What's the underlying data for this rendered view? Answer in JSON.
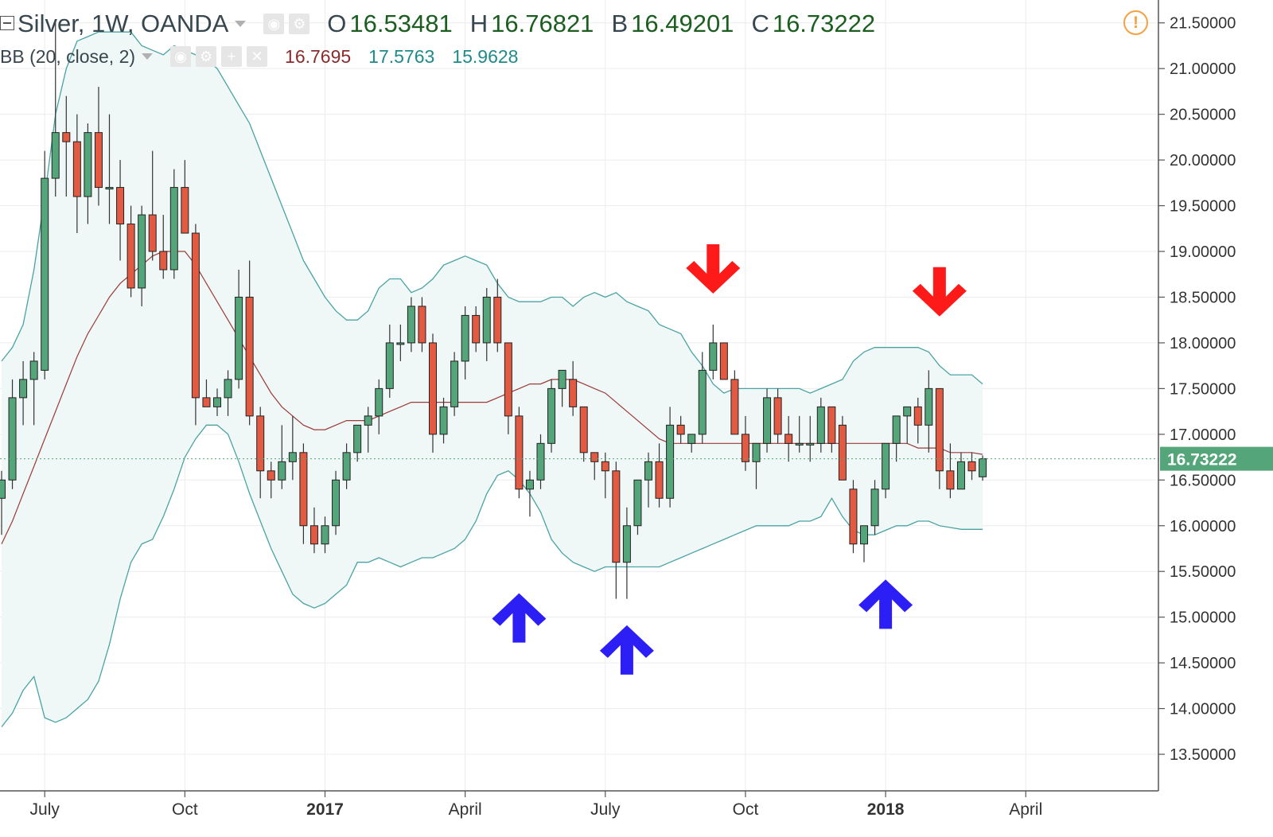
{
  "header": {
    "title": "Silver, 1W, OANDA",
    "ohlc": [
      {
        "key": "O",
        "value": "16.53481"
      },
      {
        "key": "H",
        "value": "16.76821"
      },
      {
        "key": "B",
        "value": "16.49201"
      },
      {
        "key": "C",
        "value": "16.73222"
      }
    ]
  },
  "indicator": {
    "label": "BB (20, close, 2)",
    "middle": "16.7695",
    "upper": "17.5763",
    "lower": "15.9628",
    "colors": {
      "middle": "#8b2b2b",
      "upper": "#1f8a8a",
      "lower": "#1f8a8a"
    }
  },
  "price_badge": "16.73222",
  "colors": {
    "up": "#55a57a",
    "down": "#e35a43",
    "band_fill": "#f0f7f7",
    "band_line": "#4aa3a3",
    "basis": "#9b3a3a",
    "arrow_up": "#2b1ff5",
    "arrow_down": "#ff1a1a",
    "badge": "#55a57a"
  },
  "icons": [
    "collapse-icon",
    "eye-icon",
    "gear-icon",
    "plus-icon",
    "close-icon",
    "warning-icon",
    "arrow-up-icon",
    "arrow-down-icon"
  ],
  "chart_data": {
    "type": "candlestick",
    "title": "Silver, 1W, OANDA",
    "y_ticks": [
      "13.50000",
      "14.00000",
      "14.50000",
      "15.00000",
      "15.50000",
      "16.00000",
      "16.50000",
      "17.00000",
      "17.50000",
      "18.00000",
      "18.50000",
      "19.00000",
      "19.50000",
      "20.00000",
      "20.50000",
      "21.00000",
      "21.50000"
    ],
    "x_ticks": [
      {
        "label": "July",
        "index": 4,
        "bold": false
      },
      {
        "label": "Oct",
        "index": 17,
        "bold": false
      },
      {
        "label": "2017",
        "index": 30,
        "bold": true
      },
      {
        "label": "April",
        "index": 43,
        "bold": false
      },
      {
        "label": "July",
        "index": 56,
        "bold": false
      },
      {
        "label": "Oct",
        "index": 69,
        "bold": false
      },
      {
        "label": "2018",
        "index": 82,
        "bold": true
      },
      {
        "label": "April",
        "index": 95,
        "bold": false
      }
    ],
    "ylim": [
      13.1,
      21.75
    ],
    "candles": [
      [
        16.3,
        16.6,
        15.9,
        16.5
      ],
      [
        16.5,
        17.6,
        16.4,
        17.4
      ],
      [
        17.4,
        17.8,
        17.1,
        17.6
      ],
      [
        17.6,
        17.9,
        17.1,
        17.8
      ],
      [
        17.7,
        20.1,
        17.6,
        19.8
      ],
      [
        19.8,
        21.5,
        19.6,
        20.3
      ],
      [
        20.3,
        20.7,
        19.6,
        20.2
      ],
      [
        20.2,
        20.5,
        19.2,
        19.6
      ],
      [
        19.6,
        20.4,
        19.3,
        20.3
      ],
      [
        20.3,
        20.8,
        19.5,
        19.7
      ],
      [
        19.7,
        20.5,
        19.3,
        19.7
      ],
      [
        19.7,
        20.0,
        18.9,
        19.3
      ],
      [
        19.3,
        19.5,
        18.5,
        18.6
      ],
      [
        18.6,
        19.5,
        18.4,
        19.4
      ],
      [
        19.4,
        20.1,
        18.9,
        19.0
      ],
      [
        19.0,
        19.4,
        18.7,
        18.8
      ],
      [
        18.8,
        19.9,
        18.7,
        19.7
      ],
      [
        19.7,
        20.0,
        19.2,
        19.2
      ],
      [
        19.2,
        19.3,
        17.1,
        17.4
      ],
      [
        17.4,
        17.6,
        17.3,
        17.3
      ],
      [
        17.3,
        17.5,
        17.2,
        17.4
      ],
      [
        17.4,
        17.7,
        17.2,
        17.6
      ],
      [
        17.6,
        18.8,
        17.5,
        18.5
      ],
      [
        18.5,
        18.9,
        17.1,
        17.2
      ],
      [
        17.2,
        17.3,
        16.3,
        16.6
      ],
      [
        16.6,
        16.7,
        16.3,
        16.5
      ],
      [
        16.5,
        17.1,
        16.4,
        16.7
      ],
      [
        16.7,
        17.2,
        16.5,
        16.8
      ],
      [
        16.8,
        16.9,
        15.8,
        16.0
      ],
      [
        16.0,
        16.2,
        15.7,
        15.8
      ],
      [
        15.8,
        16.1,
        15.7,
        16.0
      ],
      [
        16.0,
        16.6,
        15.9,
        16.5
      ],
      [
        16.5,
        16.9,
        16.4,
        16.8
      ],
      [
        16.8,
        17.1,
        16.7,
        17.1
      ],
      [
        17.1,
        17.3,
        16.8,
        17.2
      ],
      [
        17.2,
        17.6,
        17.0,
        17.5
      ],
      [
        17.5,
        18.2,
        17.4,
        18.0
      ],
      [
        18.0,
        18.2,
        17.8,
        18.0
      ],
      [
        18.0,
        18.5,
        17.9,
        18.4
      ],
      [
        18.4,
        18.5,
        17.9,
        18.0
      ],
      [
        18.0,
        18.1,
        16.8,
        17.0
      ],
      [
        17.0,
        17.4,
        16.9,
        17.3
      ],
      [
        17.3,
        17.9,
        17.2,
        17.8
      ],
      [
        17.8,
        18.4,
        17.6,
        18.3
      ],
      [
        18.3,
        18.4,
        17.9,
        18.0
      ],
      [
        18.0,
        18.6,
        17.8,
        18.5
      ],
      [
        18.5,
        18.7,
        17.9,
        18.0
      ],
      [
        18.0,
        18.0,
        17.0,
        17.2
      ],
      [
        17.2,
        17.3,
        16.3,
        16.4
      ],
      [
        16.4,
        16.6,
        16.1,
        16.5
      ],
      [
        16.5,
        17.0,
        16.4,
        16.9
      ],
      [
        16.9,
        17.6,
        16.8,
        17.5
      ],
      [
        17.5,
        17.7,
        17.3,
        17.7
      ],
      [
        17.6,
        17.8,
        17.2,
        17.3
      ],
      [
        17.3,
        17.3,
        16.7,
        16.8
      ],
      [
        16.8,
        16.8,
        16.5,
        16.7
      ],
      [
        16.7,
        16.8,
        16.3,
        16.6
      ],
      [
        16.6,
        16.7,
        15.2,
        15.6
      ],
      [
        15.6,
        16.2,
        15.2,
        16.0
      ],
      [
        16.0,
        16.5,
        15.9,
        16.5
      ],
      [
        16.5,
        16.8,
        16.2,
        16.7
      ],
      [
        16.7,
        16.9,
        16.2,
        16.3
      ],
      [
        16.3,
        17.3,
        16.2,
        17.1
      ],
      [
        17.1,
        17.2,
        16.9,
        17.0
      ],
      [
        16.9,
        17.0,
        16.8,
        17.0
      ],
      [
        17.0,
        17.9,
        16.9,
        17.7
      ],
      [
        17.7,
        18.2,
        17.6,
        18.0
      ],
      [
        18.0,
        18.0,
        17.6,
        17.6
      ],
      [
        17.6,
        17.7,
        17.0,
        17.0
      ],
      [
        17.0,
        17.2,
        16.6,
        16.7
      ],
      [
        16.7,
        16.9,
        16.4,
        16.9
      ],
      [
        16.9,
        17.5,
        16.8,
        17.4
      ],
      [
        17.4,
        17.5,
        16.9,
        17.0
      ],
      [
        17.0,
        17.2,
        16.7,
        16.9
      ],
      [
        16.9,
        17.2,
        16.8,
        16.9
      ],
      [
        16.9,
        17.2,
        16.7,
        16.9
      ],
      [
        16.9,
        17.4,
        16.8,
        17.3
      ],
      [
        17.3,
        17.3,
        16.8,
        16.9
      ],
      [
        17.1,
        17.2,
        16.5,
        16.5
      ],
      [
        16.4,
        16.5,
        15.7,
        15.8
      ],
      [
        15.8,
        16.0,
        15.6,
        16.0
      ],
      [
        16.0,
        16.5,
        15.9,
        16.4
      ],
      [
        16.4,
        16.9,
        16.3,
        16.9
      ],
      [
        16.9,
        17.2,
        16.7,
        17.2
      ],
      [
        17.2,
        17.3,
        16.9,
        17.3
      ],
      [
        17.3,
        17.4,
        16.9,
        17.1
      ],
      [
        17.1,
        17.7,
        16.8,
        17.5
      ],
      [
        17.5,
        17.5,
        16.4,
        16.6
      ],
      [
        16.6,
        16.9,
        16.3,
        16.4
      ],
      [
        16.4,
        16.8,
        16.4,
        16.7
      ],
      [
        16.7,
        16.8,
        16.5,
        16.6
      ],
      [
        16.53481,
        16.76821,
        16.49201,
        16.73222
      ]
    ],
    "basis": [
      15.8,
      16.05,
      16.35,
      16.65,
      16.95,
      17.25,
      17.55,
      17.85,
      18.1,
      18.3,
      18.5,
      18.65,
      18.75,
      18.85,
      18.95,
      19.0,
      19.0,
      19.0,
      18.85,
      18.65,
      18.45,
      18.25,
      18.05,
      17.85,
      17.65,
      17.45,
      17.3,
      17.2,
      17.1,
      17.05,
      17.05,
      17.1,
      17.15,
      17.15,
      17.15,
      17.2,
      17.25,
      17.3,
      17.35,
      17.35,
      17.35,
      17.35,
      17.35,
      17.35,
      17.35,
      17.35,
      17.4,
      17.45,
      17.5,
      17.55,
      17.55,
      17.6,
      17.6,
      17.6,
      17.55,
      17.5,
      17.45,
      17.35,
      17.25,
      17.15,
      17.05,
      16.95,
      16.9,
      16.9,
      16.9,
      16.9,
      16.9,
      16.9,
      16.9,
      16.9,
      16.9,
      16.9,
      16.9,
      16.9,
      16.9,
      16.9,
      16.9,
      16.9,
      16.9,
      16.9,
      16.9,
      16.9,
      16.9,
      16.9,
      16.9,
      16.85,
      16.85,
      16.85,
      16.8,
      16.8,
      16.8,
      16.78
    ],
    "upper": [
      17.8,
      17.95,
      18.2,
      18.8,
      19.6,
      20.5,
      21.0,
      21.3,
      21.35,
      21.4,
      21.4,
      21.4,
      21.4,
      21.25,
      21.2,
      21.15,
      21.25,
      21.2,
      21.15,
      21.1,
      21.0,
      20.8,
      20.6,
      20.4,
      20.1,
      19.8,
      19.5,
      19.2,
      18.9,
      18.7,
      18.5,
      18.35,
      18.25,
      18.25,
      18.35,
      18.6,
      18.7,
      18.7,
      18.55,
      18.6,
      18.7,
      18.85,
      18.9,
      18.95,
      18.9,
      18.85,
      18.65,
      18.5,
      18.45,
      18.45,
      18.45,
      18.5,
      18.5,
      18.4,
      18.5,
      18.55,
      18.5,
      18.55,
      18.45,
      18.4,
      18.35,
      18.2,
      18.15,
      18.1,
      17.9,
      17.75,
      17.55,
      17.45,
      17.5,
      17.5,
      17.5,
      17.5,
      17.5,
      17.5,
      17.5,
      17.45,
      17.5,
      17.55,
      17.6,
      17.8,
      17.9,
      17.95,
      17.95,
      17.95,
      17.95,
      17.95,
      17.9,
      17.75,
      17.65,
      17.65,
      17.65,
      17.55
    ],
    "lower": [
      13.8,
      13.95,
      14.2,
      14.35,
      13.9,
      13.85,
      13.9,
      14.0,
      14.1,
      14.3,
      14.7,
      15.2,
      15.6,
      15.8,
      15.85,
      16.1,
      16.4,
      16.75,
      16.95,
      17.1,
      17.1,
      17.0,
      16.7,
      16.35,
      16.05,
      15.75,
      15.5,
      15.25,
      15.15,
      15.1,
      15.15,
      15.25,
      15.35,
      15.6,
      15.6,
      15.65,
      15.6,
      15.55,
      15.6,
      15.65,
      15.65,
      15.7,
      15.75,
      15.85,
      16.05,
      16.35,
      16.55,
      16.6,
      16.5,
      16.35,
      16.15,
      15.85,
      15.7,
      15.6,
      15.55,
      15.5,
      15.55,
      15.55,
      15.55,
      15.55,
      15.55,
      15.55,
      15.6,
      15.65,
      15.7,
      15.75,
      15.8,
      15.85,
      15.9,
      15.95,
      16.0,
      16.0,
      16.0,
      16.0,
      16.05,
      16.05,
      16.1,
      16.3,
      16.1,
      15.95,
      15.9,
      15.9,
      15.95,
      16.0,
      16.0,
      16.05,
      16.05,
      16.0,
      15.98,
      15.96,
      15.96,
      15.96
    ],
    "markers": [
      {
        "type": "up",
        "index": 48,
        "price": 15.0
      },
      {
        "type": "up",
        "index": 58,
        "price": 14.65
      },
      {
        "type": "up",
        "index": 82,
        "price": 15.15
      },
      {
        "type": "down",
        "index": 66,
        "price": 18.8
      },
      {
        "type": "down",
        "index": 87,
        "price": 18.55
      }
    ],
    "last_price": 16.73222
  }
}
